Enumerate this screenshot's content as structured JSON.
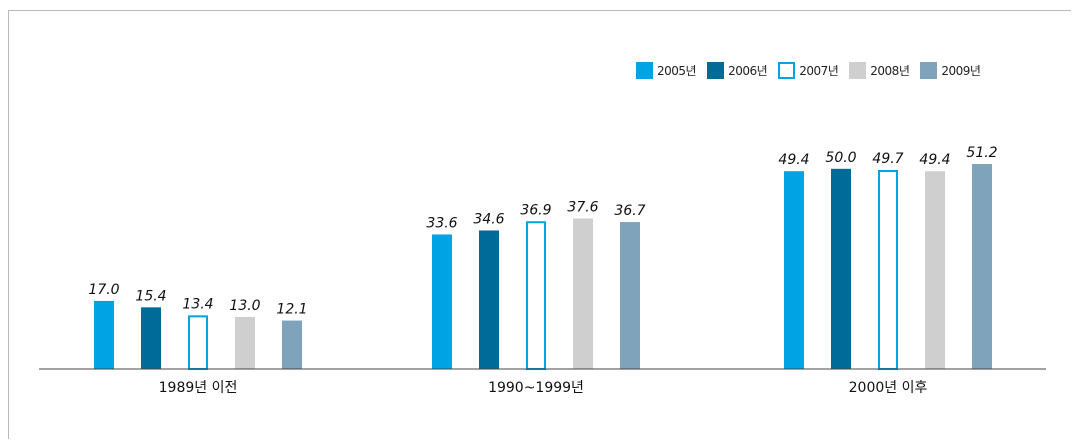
{
  "chart_data": {
    "type": "bar",
    "categories": [
      "1989년 이전",
      "1990~1999년",
      "2000년 이후"
    ],
    "series": [
      {
        "name": "2005년",
        "values": [
          17.0,
          33.6,
          49.4
        ],
        "labels": [
          "17.0",
          "33.6",
          "49.4"
        ],
        "color": "#00a3e4",
        "style": "filled"
      },
      {
        "name": "2006년",
        "values": [
          15.4,
          34.6,
          50.0
        ],
        "labels": [
          "15.4",
          "34.6",
          "50.0"
        ],
        "color": "#006b99",
        "style": "filled"
      },
      {
        "name": "2007년",
        "values": [
          13.4,
          36.9,
          49.7
        ],
        "labels": [
          "13.4",
          "36.9",
          "49.7"
        ],
        "color": "#00a3e4",
        "style": "outline"
      },
      {
        "name": "2008년",
        "values": [
          13.0,
          37.6,
          49.4
        ],
        "labels": [
          "13.0",
          "37.6",
          "49.4"
        ],
        "color": "#cfcfcf",
        "style": "filled"
      },
      {
        "name": "2009년",
        "values": [
          12.1,
          36.7,
          51.2
        ],
        "labels": [
          "12.1",
          "36.7",
          "51.2"
        ],
        "color": "#7fa3bb",
        "style": "filled"
      }
    ],
    "ylim": [
      0,
      51.2
    ],
    "grid": false,
    "legend_position": "top-right",
    "title": "",
    "xlabel": "",
    "ylabel": ""
  }
}
